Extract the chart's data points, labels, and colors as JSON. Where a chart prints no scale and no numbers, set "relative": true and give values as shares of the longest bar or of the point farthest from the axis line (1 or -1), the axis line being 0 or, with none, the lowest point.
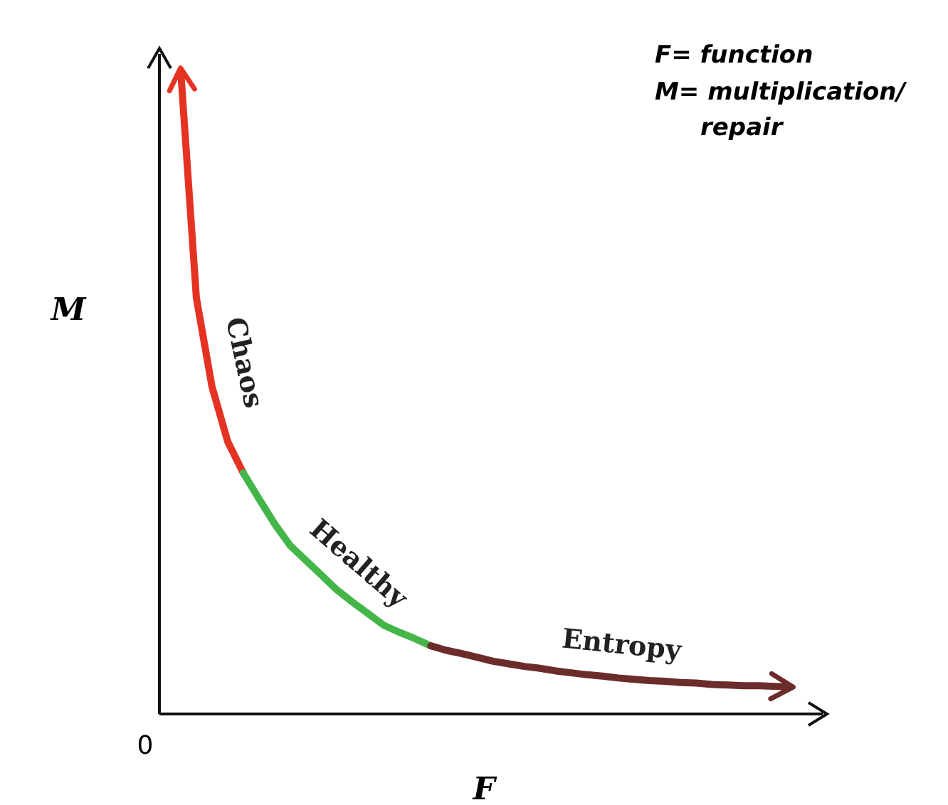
{
  "chart_data": {
    "type": "line",
    "relative": true,
    "xlabel": "F",
    "ylabel": "M",
    "annotations": [
      "F= function",
      "M= multiplication/ repair",
      "0"
    ],
    "categories": [
      null,
      null,
      null,
      null,
      null,
      null,
      null,
      null,
      null,
      null,
      null,
      null,
      null,
      null,
      null,
      null,
      null,
      null,
      null,
      null,
      null,
      null,
      null,
      null,
      null,
      null,
      null,
      null,
      null,
      null,
      null,
      null,
      null,
      null,
      null,
      null,
      null,
      null,
      null,
      null
    ],
    "series": [
      {
        "name": "Chaos",
        "color": "#e53323",
        "values": [
          1,
          0.647,
          0.509,
          0.424,
          0.375,
          null,
          null,
          null,
          null,
          null,
          null,
          null,
          null,
          null,
          null,
          null,
          null,
          null,
          null,
          null,
          null,
          null,
          null,
          null,
          null,
          null,
          null,
          null,
          null,
          null,
          null,
          null,
          null,
          null,
          null,
          null,
          null,
          null,
          null,
          null
        ]
      },
      {
        "name": "Healthy",
        "color": "#44b649",
        "values": [
          null,
          null,
          null,
          null,
          0.375,
          0.335,
          0.296,
          0.262,
          0.239,
          0.216,
          0.193,
          0.174,
          0.156,
          0.138,
          0.127,
          0.117,
          0.106,
          null,
          null,
          null,
          null,
          null,
          null,
          null,
          null,
          null,
          null,
          null,
          null,
          null,
          null,
          null,
          null,
          null,
          null,
          null,
          null,
          null,
          null,
          null
        ]
      },
      {
        "name": "Entropy",
        "color": "#6b2c2c",
        "values": [
          null,
          null,
          null,
          null,
          null,
          null,
          null,
          null,
          null,
          null,
          null,
          null,
          null,
          null,
          null,
          null,
          0.106,
          0.099,
          0.094,
          0.088,
          0.082,
          0.078,
          0.074,
          0.071,
          0.067,
          0.064,
          0.061,
          0.059,
          0.056,
          0.054,
          0.052,
          0.051,
          0.049,
          0.048,
          0.046,
          0.045,
          0.044,
          0.044,
          0.043,
          0.042
        ]
      }
    ]
  }
}
